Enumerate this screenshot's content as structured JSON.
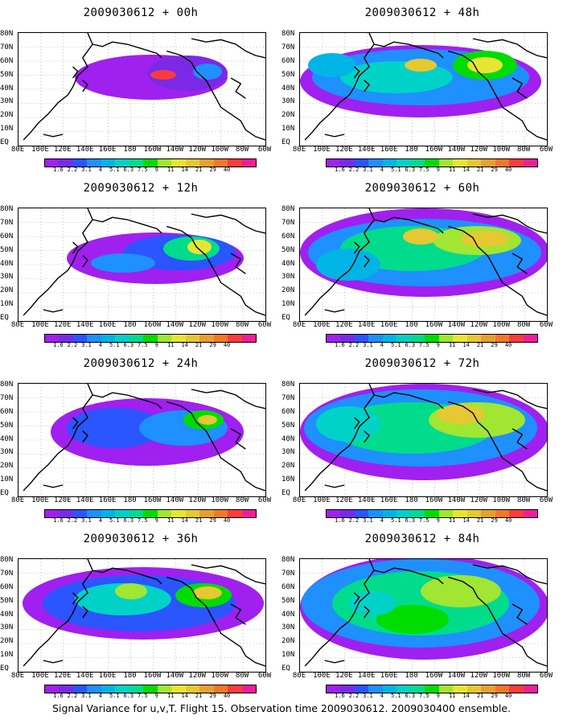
{
  "colorbar": {
    "colors": [
      "#a020f0",
      "#7a2ae6",
      "#2a55ff",
      "#1e90ff",
      "#00b4e6",
      "#00d2c8",
      "#00dc8c",
      "#00dc00",
      "#a0e632",
      "#e6e632",
      "#e6c832",
      "#e6a032",
      "#f07828",
      "#fa3c3c",
      "#f01e96"
    ],
    "labels": [
      "1.6",
      "2.2",
      "3.1",
      "4",
      "5.1",
      "6.3",
      "7.5",
      "9",
      "11",
      "14",
      "21",
      "29",
      "40"
    ]
  },
  "axes": {
    "lat_labels": [
      "80N",
      "70N",
      "60N",
      "50N",
      "40N",
      "30N",
      "20N",
      "10N",
      "EQ"
    ],
    "lon_labels": [
      "80E",
      "100E",
      "120E",
      "140E",
      "160E",
      "180",
      "160W",
      "140W",
      "120W",
      "100W",
      "80W",
      "60W"
    ]
  },
  "panels": [
    {
      "title": "2009030612 + 00h"
    },
    {
      "title": "2009030612 + 48h"
    },
    {
      "title": "2009030612 + 12h"
    },
    {
      "title": "2009030612 + 60h"
    },
    {
      "title": "2009030612 + 24h"
    },
    {
      "title": "2009030612 + 72h"
    },
    {
      "title": "2009030612 + 36h"
    },
    {
      "title": "2009030612 + 84h"
    }
  ],
  "footer": "Signal Variance for u,v,T. Flight 15. Observation time 2009030612. 2009030400 ensemble."
}
